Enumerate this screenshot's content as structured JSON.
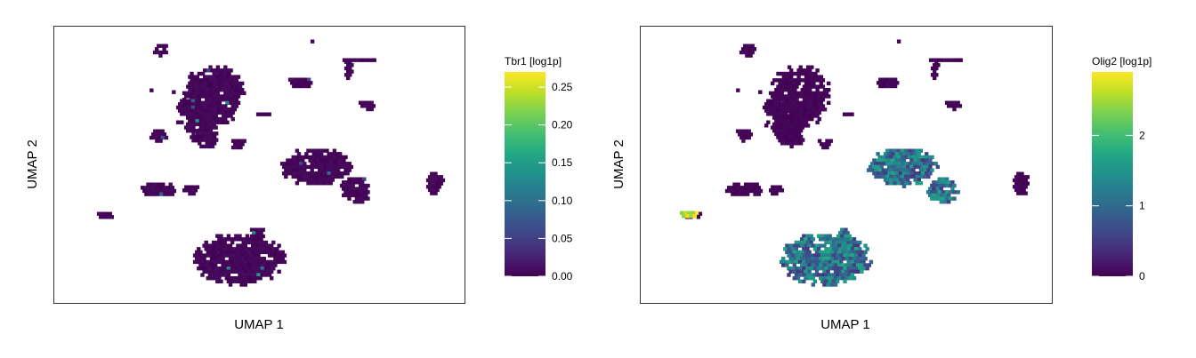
{
  "chart_data": [
    {
      "type": "scatter",
      "subtype": "hexbin-umap",
      "xlabel": "UMAP 1",
      "ylabel": "UMAP 2",
      "legend_title": "Tbr1 [log1p]",
      "colorscale": "viridis",
      "color_range": [
        0,
        0.27
      ],
      "colorbar_ticks": [
        "0.00",
        "0.05",
        "0.10",
        "0.15",
        "0.20",
        "0.25"
      ],
      "colorbar_tick_values": [
        0,
        0.05,
        0.1,
        0.15,
        0.2,
        0.25
      ],
      "legend_position": "right",
      "grid": false,
      "axis_ticks_shown": false,
      "summary": "Nearly all cells near 0; a few scattered bins slightly elevated (~0.05-0.15)."
    },
    {
      "type": "scatter",
      "subtype": "hexbin-umap",
      "xlabel": "UMAP 1",
      "ylabel": "UMAP 2",
      "legend_title": "Olig2 [log1p]",
      "colorscale": "viridis",
      "color_range": [
        0,
        2.9
      ],
      "colorbar_ticks": [
        "0",
        "1",
        "2"
      ],
      "colorbar_tick_values": [
        0,
        1,
        2
      ],
      "legend_position": "right",
      "grid": false,
      "axis_ticks_shown": false,
      "summary": "High expression (~2.5-2.9) in small left-edge cluster; moderate (~0.5-1.5) in middle-right cluster and bottom cluster; others ~0."
    }
  ]
}
